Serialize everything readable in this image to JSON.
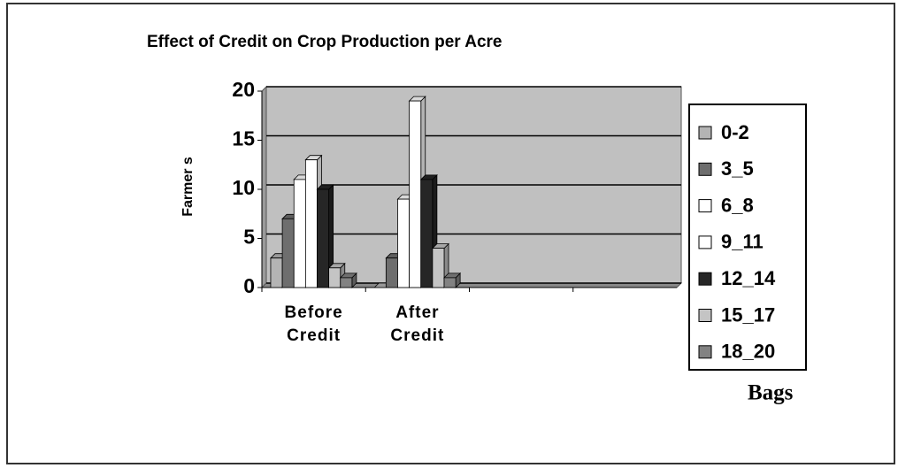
{
  "chart_data": {
    "type": "bar",
    "title": "Effect of Credit on Crop Production per Acre",
    "y_label": "Farmer s",
    "legend_title": "Bags",
    "categories": [
      "Before Credit",
      "After Credit",
      null,
      null
    ],
    "series": [
      {
        "name": "0-2",
        "color": "#b4b4b4",
        "values": [
          3,
          0,
          null,
          null
        ]
      },
      {
        "name": "3_5",
        "color": "#6e6e6e",
        "values": [
          7,
          3,
          null,
          null
        ]
      },
      {
        "name": "6_8",
        "color": "#ffffff",
        "values": [
          11,
          9,
          null,
          null
        ]
      },
      {
        "name": "9_11",
        "color": "#ffffff",
        "values": [
          13,
          19,
          null,
          null
        ]
      },
      {
        "name": "12_14",
        "color": "#262626",
        "values": [
          10,
          11,
          null,
          null
        ]
      },
      {
        "name": "15_17",
        "color": "#c4c4c4",
        "values": [
          2,
          4,
          null,
          null
        ]
      },
      {
        "name": "18_20",
        "color": "#828282",
        "values": [
          1,
          1,
          null,
          null
        ]
      }
    ],
    "ylim": [
      0,
      20
    ],
    "yticks": [
      0,
      5,
      10,
      15,
      20
    ],
    "grid": true,
    "legend": "right"
  }
}
